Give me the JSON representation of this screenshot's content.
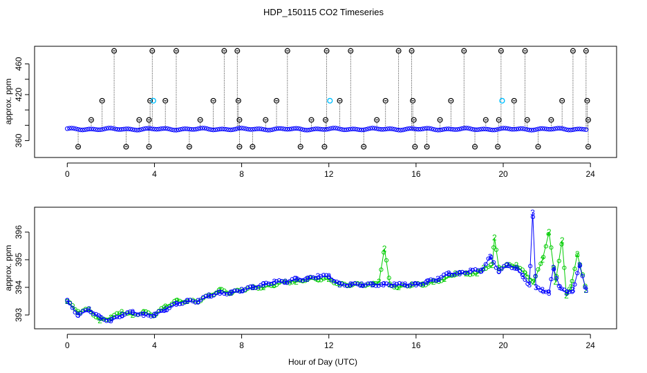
{
  "figure": {
    "title": "HDP_150115  CO2 Timeseries",
    "xlabel": "Hour of Day (UTC)"
  },
  "chart_data": [
    {
      "type": "scatter",
      "title": "HDP_150115  CO2 Timeseries",
      "xlabel": "Hour of Day (UTC)",
      "ylabel": "approx. ppm",
      "xlim": [
        -1.5,
        25.2
      ],
      "ylim": [
        338,
        483
      ],
      "xticks": [
        0,
        4,
        8,
        12,
        16,
        20,
        24
      ],
      "yticks": [
        360,
        380,
        400,
        420,
        440,
        460
      ],
      "ytick_labels": [
        "360",
        "",
        "",
        "420",
        "",
        "460"
      ],
      "baseline": 375,
      "baseline_x": [
        0,
        23.85
      ],
      "series": [
        {
          "name": "baseline points",
          "color": "#0000ff"
        },
        {
          "name": "high flag",
          "color": "#000000",
          "value": 477,
          "x": [
            2.15,
            3.9,
            5.0,
            7.2,
            7.8,
            10.1,
            11.9,
            13.0,
            15.2,
            15.8,
            18.2,
            19.9,
            21.0,
            23.2,
            23.8
          ]
        },
        {
          "name": "upper flag",
          "color": "#000000",
          "value": 412,
          "x": [
            1.6,
            3.8,
            4.5,
            6.7,
            7.85,
            9.6,
            12.5,
            14.6,
            15.85,
            17.6,
            20.5,
            22.7,
            23.85
          ]
        },
        {
          "name": "mid flag",
          "color": "#000000",
          "value": 387,
          "x": [
            1.1,
            3.3,
            3.75,
            6.1,
            7.9,
            9.1,
            11.2,
            11.85,
            14.2,
            15.9,
            17.1,
            19.2,
            19.8,
            21.1,
            22.2,
            23.9
          ]
        },
        {
          "name": "low flag",
          "color": "#000000",
          "value": 352,
          "x": [
            0.5,
            2.7,
            3.75,
            5.6,
            7.9,
            8.5,
            10.7,
            11.8,
            13.6,
            15.95,
            16.5,
            18.7,
            19.75,
            21.6,
            23.9
          ]
        },
        {
          "name": "cyan marks",
          "color": "#00bfff",
          "value": 412,
          "x": [
            3.95,
            12.05,
            19.95
          ]
        }
      ]
    },
    {
      "type": "line",
      "xlabel": "Hour of Day (UTC)",
      "ylabel": "approx. ppm",
      "xlim": [
        -1.5,
        25.2
      ],
      "ylim": [
        392.5,
        396.9
      ],
      "xticks": [
        0,
        4,
        8,
        12,
        16,
        20,
        24
      ],
      "yticks": [
        393,
        394,
        395,
        396
      ],
      "marker_labels": [
        "2",
        "3"
      ],
      "series": [
        {
          "name": "2",
          "color": "#00cc00",
          "marker": "2",
          "x": [
            0,
            0.5,
            1,
            1.5,
            2,
            2.5,
            3,
            3.5,
            4,
            4.5,
            5,
            5.5,
            6,
            6.5,
            7,
            7.5,
            8,
            8.5,
            9,
            9.5,
            10,
            10.5,
            11,
            11.5,
            12,
            12.5,
            13,
            13.5,
            14,
            14.3,
            14.55,
            14.8,
            15.2,
            15.8,
            16.3,
            16.8,
            17.3,
            17.8,
            18.3,
            18.8,
            19.1,
            19.5,
            19.6,
            19.8,
            20.2,
            20.6,
            21,
            21.4,
            21.8,
            22.1,
            22.4,
            22.7,
            22.9,
            23.1,
            23.4,
            23.8
          ],
          "values": [
            393.5,
            393.1,
            393.2,
            392.8,
            392.9,
            393.1,
            393.0,
            393.1,
            393.0,
            393.3,
            393.5,
            393.5,
            393.5,
            393.7,
            393.9,
            393.8,
            393.9,
            394.0,
            394.0,
            394.1,
            394.2,
            394.2,
            394.3,
            394.3,
            394.3,
            394.1,
            394.1,
            394.1,
            394.1,
            394.2,
            395.4,
            394.1,
            394.0,
            394.1,
            394.1,
            394.2,
            394.3,
            394.5,
            394.5,
            394.5,
            394.7,
            394.8,
            395.8,
            394.7,
            394.8,
            394.8,
            394.5,
            394.2,
            395.0,
            396.0,
            394.2,
            395.7,
            393.7,
            394.0,
            395.2,
            393.9
          ]
        },
        {
          "name": "3",
          "color": "#0000ff",
          "marker": "3",
          "x": [
            0,
            0.5,
            1,
            1.5,
            2,
            2.5,
            3,
            3.5,
            4,
            4.5,
            5,
            5.5,
            6,
            6.5,
            7,
            7.5,
            8,
            8.5,
            9,
            9.5,
            10,
            10.5,
            11,
            11.5,
            12,
            12.5,
            13,
            13.5,
            14,
            14.5,
            15,
            15.5,
            16,
            16.5,
            17,
            17.5,
            18,
            18.5,
            19,
            19.4,
            19.8,
            20.2,
            20.6,
            20.9,
            21.2,
            21.35,
            21.5,
            21.8,
            22.1,
            22.3,
            22.6,
            22.9,
            23.2,
            23.5,
            23.8
          ],
          "values": [
            393.5,
            393.0,
            393.2,
            392.9,
            392.8,
            393.0,
            393.1,
            393.0,
            393.0,
            393.2,
            393.4,
            393.5,
            393.5,
            393.7,
            393.8,
            393.8,
            393.9,
            394.0,
            394.1,
            394.2,
            394.2,
            394.3,
            394.3,
            394.4,
            394.4,
            394.1,
            394.1,
            394.1,
            394.1,
            394.1,
            394.1,
            394.1,
            394.1,
            394.2,
            394.3,
            394.5,
            394.5,
            394.6,
            394.6,
            395.1,
            394.6,
            394.8,
            394.7,
            394.4,
            394.1,
            396.7,
            394.0,
            393.9,
            393.8,
            394.7,
            394.0,
            393.8,
            393.9,
            394.8,
            393.9
          ]
        }
      ]
    }
  ]
}
